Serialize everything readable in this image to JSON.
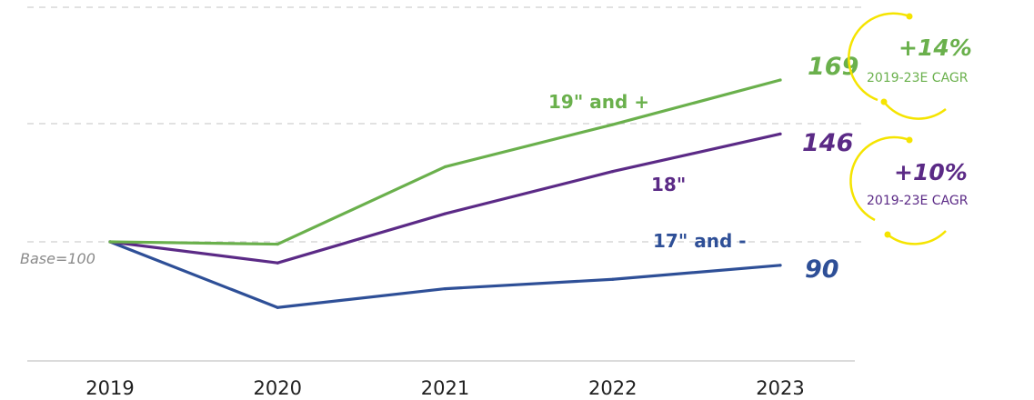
{
  "chart_data": {
    "type": "line",
    "x": [
      "2019",
      "2020",
      "2021",
      "2022",
      "2023"
    ],
    "series": [
      {
        "name": "19\" and +",
        "values": [
          100,
          99,
          132,
          150,
          169
        ],
        "color": "#6ab04c"
      },
      {
        "name": "18\"",
        "values": [
          100,
          91,
          112,
          130,
          146
        ],
        "color": "#5b2a86"
      },
      {
        "name": "17\" and -",
        "values": [
          100,
          72,
          80,
          84,
          90
        ],
        "color": "#2e4f97"
      }
    ],
    "end_labels": [
      "169",
      "146",
      "90"
    ],
    "base_label": "Base=100",
    "ylim": [
      40,
      200
    ],
    "gridlines": [
      100,
      164,
      230
    ],
    "cagr": [
      {
        "value": "+14%",
        "label": "2019-23E CAGR",
        "color": "#6ab04c"
      },
      {
        "value": "+10%",
        "label": "2019-23E CAGR",
        "color": "#5b2a86"
      }
    ],
    "accent_color": "#f5e400"
  }
}
